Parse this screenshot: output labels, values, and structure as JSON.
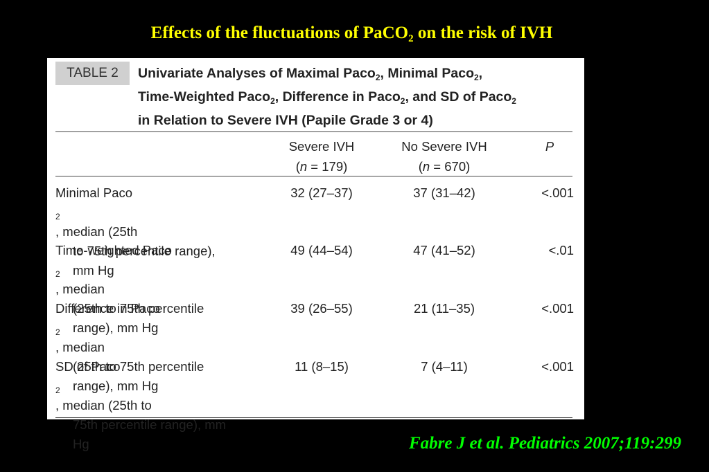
{
  "slide": {
    "title_before": "Effects of the fluctuations of PaCO",
    "title_sub": "2",
    "title_after": " on the risk of IVH",
    "citation": "Fabre J et al. Pediatrics 2007;119:299"
  },
  "table": {
    "tag": "TABLE 2",
    "caption": {
      "l1_a": "Univariate Analyses of Maximal Paco",
      "l1_s1": "2",
      "l1_b": ", Minimal Paco",
      "l1_s2": "2",
      "l1_c": ",",
      "l2_a": "Time-Weighted Paco",
      "l2_s1": "2",
      "l2_b": ", Difference in Paco",
      "l2_s2": "2",
      "l2_c": ", and SD of Paco",
      "l2_s3": "2",
      "l3": "in Relation to Severe IVH (Papile Grade 3 or 4)"
    },
    "columns": {
      "severe": {
        "label": "Severe IVH",
        "n_prefix": "(",
        "n_var": "n",
        "n_rest": " = 179)"
      },
      "no_severe": {
        "label": "No Severe IVH",
        "n_prefix": "(",
        "n_var": "n",
        "n_rest": " = 670)"
      },
      "p": {
        "label": "P"
      }
    },
    "rows": [
      {
        "l1_a": "Minimal Paco",
        "l1_sub": "2",
        "l1_b": ", median (25th",
        "l2": "to 75th percentile range),",
        "l3": "mm Hg",
        "severe": "32 (27–37)",
        "no_severe": "37 (31–42)",
        "p": "<.001"
      },
      {
        "l1_a": "Time-weighted Paco",
        "l1_sub": "2",
        "l1_b": ", median",
        "l2": "(25th to 75th percentile",
        "l3": "range), mm Hg",
        "severe": "49 (44–54)",
        "no_severe": "47 (41–52)",
        "p": "<.01"
      },
      {
        "l1_a": "Difference in Paco",
        "l1_sub": "2",
        "l1_b": ", median",
        "l2": "(25th to 75th percentile",
        "l3": "range), mm Hg",
        "severe": "39 (26–55)",
        "no_severe": "21 (11–35)",
        "p": "<.001"
      },
      {
        "l1_a": "SD of Paco",
        "l1_sub": "2",
        "l1_b": ", median (25th to",
        "l2": "75th percentile range), mm",
        "l3": "Hg",
        "severe": "11 (8–15)",
        "no_severe": "7 (4–11)",
        "p": "<.001"
      }
    ]
  }
}
